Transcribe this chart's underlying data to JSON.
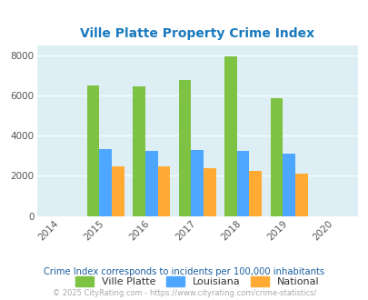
{
  "title": "Ville Platte Property Crime Index",
  "years": [
    2015,
    2016,
    2017,
    2018,
    2019
  ],
  "ville_platte": [
    6500,
    6430,
    6750,
    7950,
    5850
  ],
  "louisiana": [
    3320,
    3250,
    3300,
    3250,
    3080
  ],
  "national": [
    2480,
    2480,
    2360,
    2220,
    2100
  ],
  "ville_platte_color": "#7dc242",
  "louisiana_color": "#4da6ff",
  "national_color": "#ffaa33",
  "title_color": "#1a7abf",
  "background_color": "#ddeef5",
  "xlim": [
    2013.5,
    2020.5
  ],
  "ylim": [
    0,
    8500
  ],
  "yticks": [
    0,
    2000,
    4000,
    6000,
    8000
  ],
  "xticks": [
    2014,
    2015,
    2016,
    2017,
    2018,
    2019,
    2020
  ],
  "bar_width": 0.27,
  "subtitle": "Crime Index corresponds to incidents per 100,000 inhabitants",
  "footer": "© 2025 CityRating.com - https://www.cityrating.com/crime-statistics/",
  "legend_labels": [
    "Ville Platte",
    "Louisiana",
    "National"
  ],
  "subtitle_color": "#1a5fa0",
  "footer_color": "#aaaaaa"
}
